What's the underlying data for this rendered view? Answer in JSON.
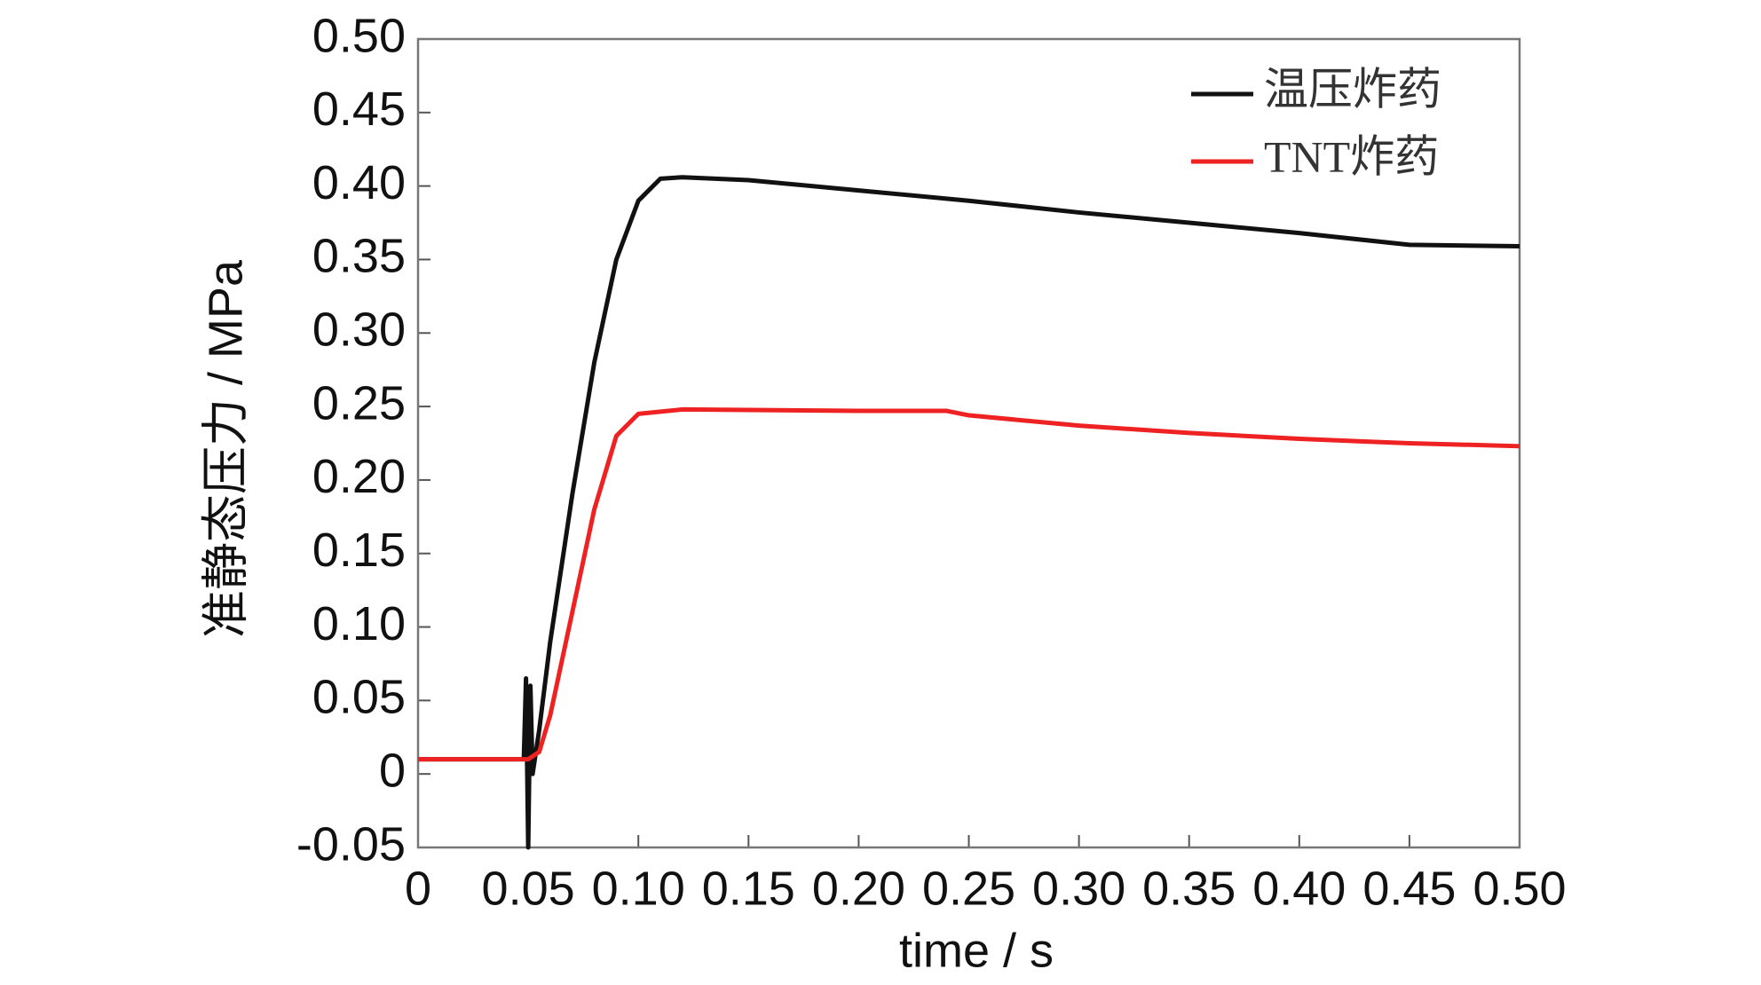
{
  "chart_data": {
    "type": "line",
    "x_label": "time / s",
    "y_label": "准静态压力 / MPa",
    "xlim": [
      0,
      0.5
    ],
    "ylim": [
      -0.05,
      0.5
    ],
    "xticks": [
      0,
      0.05,
      {
        "value": 0.1,
        "label": "0.10"
      },
      0.15,
      {
        "value": 0.2,
        "label": "0.20"
      },
      0.25,
      {
        "value": 0.3,
        "label": "0.30"
      },
      0.35,
      {
        "value": 0.4,
        "label": "0.40"
      },
      0.45,
      {
        "value": 0.5,
        "label": "0.50"
      }
    ],
    "yticks": [
      -0.05,
      0,
      0.05,
      {
        "value": 0.1,
        "label": "0.10"
      },
      0.15,
      {
        "value": 0.2,
        "label": "0.20"
      },
      0.25,
      {
        "value": 0.3,
        "label": "0.30"
      },
      0.35,
      {
        "value": 0.4,
        "label": "0.40"
      },
      0.45,
      {
        "value": 0.5,
        "label": "0.50"
      }
    ],
    "legend_position": "upper right",
    "series": [
      {
        "name": "温压炸药",
        "color": "#111111",
        "x": [
          0,
          0.048,
          0.049,
          0.05,
          0.051,
          0.052,
          0.055,
          0.06,
          0.07,
          0.08,
          0.09,
          0.1,
          0.11,
          0.12,
          0.15,
          0.2,
          0.25,
          0.3,
          0.35,
          0.4,
          0.45,
          0.5
        ],
        "values": [
          0.01,
          0.01,
          0.065,
          -0.05,
          0.06,
          0.0,
          0.03,
          0.09,
          0.19,
          0.28,
          0.35,
          0.39,
          0.405,
          0.406,
          0.404,
          0.397,
          0.39,
          0.382,
          0.375,
          0.368,
          0.36,
          0.359
        ]
      },
      {
        "name": "TNT炸药",
        "color": "#ee2222",
        "x": [
          0,
          0.05,
          0.055,
          0.06,
          0.07,
          0.08,
          0.09,
          0.1,
          0.12,
          0.2,
          0.24,
          0.25,
          0.3,
          0.35,
          0.4,
          0.45,
          0.5
        ],
        "values": [
          0.01,
          0.01,
          0.015,
          0.04,
          0.11,
          0.18,
          0.23,
          0.245,
          0.248,
          0.247,
          0.247,
          0.244,
          0.237,
          0.232,
          0.228,
          0.225,
          0.223
        ]
      }
    ]
  }
}
